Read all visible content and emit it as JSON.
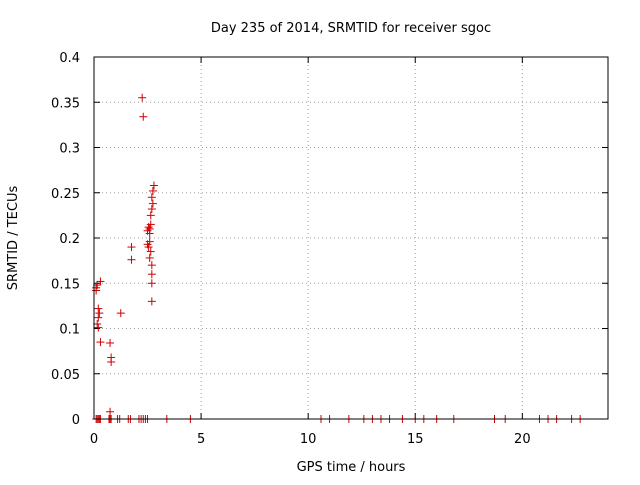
{
  "chart_data": {
    "type": "scatter",
    "title": "Day 235 of 2014, SRMTID for receiver sgoc",
    "xlabel": "GPS time / hours",
    "ylabel": "SRMTID / TECUs",
    "xlim": [
      0,
      24
    ],
    "ylim": [
      0,
      0.4
    ],
    "marker": "+",
    "marker_color": "#d00000",
    "grid": true,
    "x_ticks": [
      0,
      5,
      10,
      15,
      20
    ],
    "x_tick_labels": [
      "0",
      "5",
      "10",
      "15",
      "20"
    ],
    "y_ticks": [
      0,
      0.05,
      0.1,
      0.15,
      0.2,
      0.25,
      0.3,
      0.35,
      0.4
    ],
    "y_tick_labels": [
      "0",
      "0.05",
      "0.1",
      "0.15",
      "0.2",
      "0.25",
      "0.3",
      "0.35",
      "0.4"
    ],
    "series": [
      {
        "name": "SRMTID",
        "points": [
          [
            0.1,
            0.0
          ],
          [
            0.15,
            0.0
          ],
          [
            0.2,
            0.0
          ],
          [
            0.25,
            0.0
          ],
          [
            0.3,
            0.0
          ],
          [
            0.7,
            0.0
          ],
          [
            0.75,
            0.0
          ],
          [
            0.8,
            0.0
          ],
          [
            1.1,
            0.0
          ],
          [
            1.2,
            0.0
          ],
          [
            1.6,
            0.0
          ],
          [
            1.7,
            0.0
          ],
          [
            2.1,
            0.0
          ],
          [
            2.2,
            0.0
          ],
          [
            2.3,
            0.0
          ],
          [
            2.4,
            0.0
          ],
          [
            2.5,
            0.0
          ],
          [
            3.4,
            0.0
          ],
          [
            4.5,
            0.0
          ],
          [
            10.6,
            0.0
          ],
          [
            11.0,
            0.0
          ],
          [
            11.9,
            0.0
          ],
          [
            12.6,
            0.0
          ],
          [
            13.0,
            0.0
          ],
          [
            13.4,
            0.0
          ],
          [
            13.8,
            0.0
          ],
          [
            14.4,
            0.0
          ],
          [
            15.0,
            0.0
          ],
          [
            15.4,
            0.0
          ],
          [
            16.0,
            0.0
          ],
          [
            16.8,
            0.0
          ],
          [
            18.7,
            0.0
          ],
          [
            19.2,
            0.0
          ],
          [
            20.8,
            0.0
          ],
          [
            21.2,
            0.0
          ],
          [
            21.6,
            0.0
          ],
          [
            22.3,
            0.0
          ],
          [
            22.7,
            0.0
          ],
          [
            0.1,
            0.142
          ],
          [
            0.1,
            0.145
          ],
          [
            0.15,
            0.148
          ],
          [
            0.3,
            0.152
          ],
          [
            0.2,
            0.112
          ],
          [
            0.25,
            0.117
          ],
          [
            0.2,
            0.122
          ],
          [
            0.15,
            0.105
          ],
          [
            0.2,
            0.101
          ],
          [
            0.3,
            0.085
          ],
          [
            0.75,
            0.084
          ],
          [
            0.8,
            0.068
          ],
          [
            0.8,
            0.063
          ],
          [
            0.75,
            0.008
          ],
          [
            1.25,
            0.117
          ],
          [
            1.75,
            0.19
          ],
          [
            1.75,
            0.176
          ],
          [
            2.25,
            0.355
          ],
          [
            2.3,
            0.334
          ],
          [
            2.5,
            0.208
          ],
          [
            2.55,
            0.212
          ],
          [
            2.6,
            0.205
          ],
          [
            2.6,
            0.196
          ],
          [
            2.55,
            0.19
          ],
          [
            2.65,
            0.185
          ],
          [
            2.5,
            0.193
          ],
          [
            2.6,
            0.178
          ],
          [
            2.7,
            0.17
          ],
          [
            2.7,
            0.16
          ],
          [
            2.7,
            0.15
          ],
          [
            2.65,
            0.215
          ],
          [
            2.65,
            0.225
          ],
          [
            2.7,
            0.232
          ],
          [
            2.75,
            0.238
          ],
          [
            2.7,
            0.245
          ],
          [
            2.75,
            0.252
          ],
          [
            2.8,
            0.258
          ],
          [
            2.7,
            0.13
          ],
          [
            2.6,
            0.21
          ]
        ]
      }
    ]
  }
}
